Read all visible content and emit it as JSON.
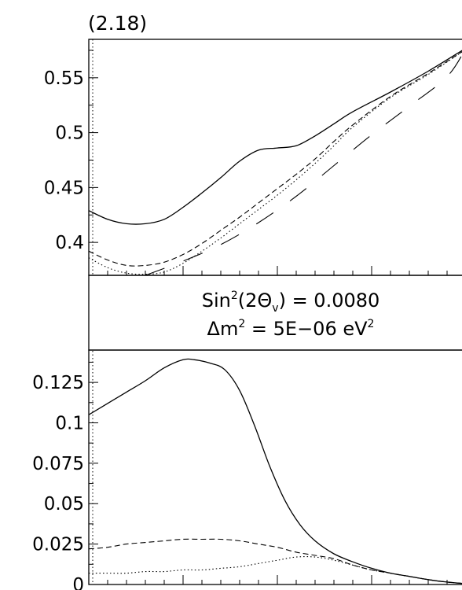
{
  "panel_label": "(2.18)",
  "info": {
    "line1_main": "Sin",
    "line1_sup": "2",
    "line1_open": "(2",
    "line1_theta": "Θ",
    "line1_sub": "v",
    "line1_close": ") = 0.0080",
    "line2_delta": "Δm",
    "line2_sup": "2",
    "line2_rest": " = 5E−06 eV",
    "line2_sup2": "2"
  },
  "chart_data": [
    {
      "type": "line",
      "title": "",
      "xlabel": "",
      "ylabel": "",
      "ylim": [
        0.37,
        0.585
      ],
      "xlim": [
        0,
        1
      ],
      "y_ticks": [
        0.4,
        0.45,
        0.5,
        0.55
      ],
      "y_tick_labels": [
        "0.4",
        "0.45",
        "0.5",
        "0.55"
      ],
      "series": [
        {
          "style": "solid",
          "x": [
            0,
            0.05,
            0.1,
            0.15,
            0.2,
            0.25,
            0.3,
            0.35,
            0.4,
            0.45,
            0.5,
            0.55,
            0.6,
            0.65,
            0.7,
            0.8,
            0.9,
            1.0
          ],
          "y": [
            0.429,
            0.421,
            0.417,
            0.417,
            0.421,
            0.432,
            0.445,
            0.459,
            0.474,
            0.484,
            0.486,
            0.488,
            0.497,
            0.508,
            0.519,
            0.537,
            0.556,
            0.577
          ]
        },
        {
          "style": "dashed",
          "x": [
            0,
            0.05,
            0.1,
            0.15,
            0.2,
            0.25,
            0.3,
            0.35,
            0.4,
            0.45,
            0.5,
            0.55,
            0.6,
            0.65,
            0.7,
            0.8,
            0.9,
            1.0
          ],
          "y": [
            0.392,
            0.384,
            0.379,
            0.379,
            0.382,
            0.389,
            0.399,
            0.411,
            0.423,
            0.436,
            0.449,
            0.462,
            0.476,
            0.492,
            0.507,
            0.533,
            0.554,
            0.576
          ]
        },
        {
          "style": "dotted",
          "x": [
            0,
            0.05,
            0.1,
            0.15,
            0.2,
            0.25,
            0.3,
            0.35,
            0.4,
            0.45,
            0.5,
            0.55,
            0.6,
            0.65,
            0.7,
            0.8,
            0.9,
            1.0
          ],
          "y": [
            0.386,
            0.377,
            0.372,
            0.371,
            0.373,
            0.381,
            0.392,
            0.404,
            0.417,
            0.43,
            0.443,
            0.457,
            0.472,
            0.488,
            0.505,
            0.532,
            0.553,
            0.576
          ]
        },
        {
          "style": "long-dash",
          "x": [
            0.15,
            0.25,
            0.35,
            0.45,
            0.55,
            0.65,
            0.75,
            0.85,
            0.95,
            1.0
          ],
          "y": [
            0.37,
            0.383,
            0.398,
            0.418,
            0.442,
            0.47,
            0.498,
            0.524,
            0.551,
            0.577
          ]
        }
      ]
    },
    {
      "type": "line",
      "title": "",
      "xlabel": "",
      "ylabel": "",
      "ylim": [
        0,
        0.145
      ],
      "xlim": [
        0,
        1
      ],
      "y_ticks": [
        0,
        0.025,
        0.05,
        0.075,
        0.1,
        0.125
      ],
      "y_tick_labels": [
        "0",
        "0.025",
        "0.05",
        "0.075",
        "0.1",
        "0.125"
      ],
      "series": [
        {
          "style": "solid",
          "x": [
            0,
            0.05,
            0.1,
            0.15,
            0.2,
            0.25,
            0.28,
            0.32,
            0.36,
            0.4,
            0.44,
            0.48,
            0.52,
            0.56,
            0.6,
            0.65,
            0.7,
            0.75,
            0.8,
            0.85,
            0.9,
            0.95,
            1.0
          ],
          "y": [
            0.105,
            0.112,
            0.119,
            0.126,
            0.134,
            0.139,
            0.139,
            0.137,
            0.133,
            0.12,
            0.098,
            0.073,
            0.052,
            0.037,
            0.027,
            0.019,
            0.014,
            0.01,
            0.007,
            0.005,
            0.003,
            0.0015,
            0.0005
          ]
        },
        {
          "style": "dashed",
          "x": [
            0,
            0.05,
            0.1,
            0.15,
            0.2,
            0.25,
            0.3,
            0.35,
            0.4,
            0.45,
            0.5,
            0.55,
            0.6,
            0.65,
            0.7,
            0.75,
            0.8,
            0.85,
            0.9,
            0.95,
            1.0
          ],
          "y": [
            0.022,
            0.023,
            0.025,
            0.026,
            0.027,
            0.028,
            0.028,
            0.028,
            0.027,
            0.025,
            0.023,
            0.02,
            0.018,
            0.016,
            0.012,
            0.009,
            0.007,
            0.005,
            0.003,
            0.0015,
            0.0005
          ]
        },
        {
          "style": "dotted",
          "x": [
            0,
            0.05,
            0.1,
            0.15,
            0.2,
            0.25,
            0.3,
            0.35,
            0.4,
            0.45,
            0.5,
            0.55,
            0.6,
            0.65,
            0.7,
            0.75,
            0.8,
            0.85,
            0.9,
            0.95,
            1.0
          ],
          "y": [
            0.007,
            0.007,
            0.007,
            0.008,
            0.008,
            0.009,
            0.009,
            0.01,
            0.011,
            0.013,
            0.015,
            0.017,
            0.017,
            0.015,
            0.012,
            0.009,
            0.007,
            0.005,
            0.003,
            0.0015,
            0.0005
          ]
        }
      ]
    }
  ]
}
